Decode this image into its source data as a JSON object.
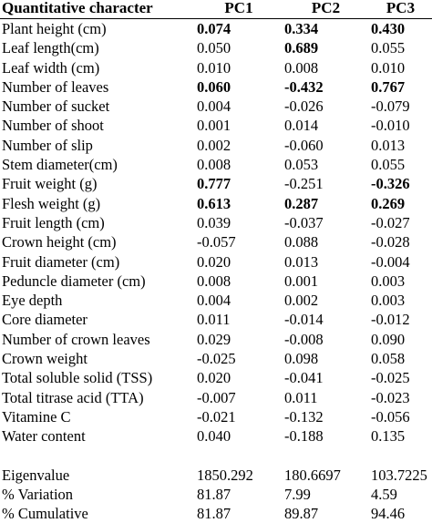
{
  "header": {
    "col0": "Quantitative character",
    "col1": "PC1",
    "col2": "PC2",
    "col3": "PC3"
  },
  "rows": [
    {
      "label": "Plant height (cm)",
      "pc1": "0.074",
      "pc2": "0.334",
      "pc3": "0.430",
      "bold": [
        true,
        true,
        true
      ]
    },
    {
      "label": "Leaf length(cm)",
      "pc1": "0.050",
      "pc2": "0.689",
      "pc3": "0.055",
      "bold": [
        false,
        true,
        false
      ]
    },
    {
      "label": "Leaf width (cm)",
      "pc1": "0.010",
      "pc2": "0.008",
      "pc3": "0.010",
      "bold": [
        false,
        false,
        false
      ]
    },
    {
      "label": "Number of leaves",
      "pc1": "0.060",
      "pc2": "-0.432",
      "pc3": "0.767",
      "bold": [
        true,
        true,
        true
      ]
    },
    {
      "label": "Number of sucket",
      "pc1": "0.004",
      "pc2": "-0.026",
      "pc3": "-0.079",
      "bold": [
        false,
        false,
        false
      ]
    },
    {
      "label": "Number of shoot",
      "pc1": "0.001",
      "pc2": "0.014",
      "pc3": "-0.010",
      "bold": [
        false,
        false,
        false
      ]
    },
    {
      "label": "Number of slip",
      "pc1": "0.002",
      "pc2": "-0.060",
      "pc3": "0.013",
      "bold": [
        false,
        false,
        false
      ]
    },
    {
      "label": "Stem diameter(cm)",
      "pc1": "0.008",
      "pc2": "0.053",
      "pc3": "0.055",
      "bold": [
        false,
        false,
        false
      ]
    },
    {
      "label": "Fruit weight (g)",
      "pc1": "0.777",
      "pc2": "-0.251",
      "pc3": "-0.326",
      "bold": [
        true,
        false,
        true
      ]
    },
    {
      "label": "Flesh weight (g)",
      "pc1": "0.613",
      "pc2": "0.287",
      "pc3": "0.269",
      "bold": [
        true,
        true,
        true
      ]
    },
    {
      "label": "Fruit length (cm)",
      "pc1": "0.039",
      "pc2": "-0.037",
      "pc3": "-0.027",
      "bold": [
        false,
        false,
        false
      ]
    },
    {
      "label": "Crown height (cm)",
      "pc1": "-0.057",
      "pc2": "0.088",
      "pc3": "-0.028",
      "bold": [
        false,
        false,
        false
      ]
    },
    {
      "label": "Fruit diameter (cm)",
      "pc1": "0.020",
      "pc2": "0.013",
      "pc3": "-0.004",
      "bold": [
        false,
        false,
        false
      ]
    },
    {
      "label": "Peduncle diameter (cm)",
      "pc1": "0.008",
      "pc2": "0.001",
      "pc3": "0.003",
      "bold": [
        false,
        false,
        false
      ]
    },
    {
      "label": "Eye depth",
      "pc1": "0.004",
      "pc2": "0.002",
      "pc3": "0.003",
      "bold": [
        false,
        false,
        false
      ]
    },
    {
      "label": "Core diameter",
      "pc1": "0.011",
      "pc2": "-0.014",
      "pc3": "-0.012",
      "bold": [
        false,
        false,
        false
      ]
    },
    {
      "label": "Number of crown leaves",
      "pc1": "0.029",
      "pc2": "-0.008",
      "pc3": "0.090",
      "bold": [
        false,
        false,
        false
      ]
    },
    {
      "label": "Crown weight",
      "pc1": "-0.025",
      "pc2": "0.098",
      "pc3": "0.058",
      "bold": [
        false,
        false,
        false
      ]
    },
    {
      "label": "Total soluble solid (TSS)",
      "pc1": "0.020",
      "pc2": "-0.041",
      "pc3": "-0.025",
      "bold": [
        false,
        false,
        false
      ]
    },
    {
      "label": "Total titrase acid (TTA)",
      "pc1": "-0.007",
      "pc2": "0.011",
      "pc3": "-0.023",
      "bold": [
        false,
        false,
        false
      ]
    },
    {
      "label": "Vitamine C",
      "pc1": "-0.021",
      "pc2": "-0.132",
      "pc3": "-0.056",
      "bold": [
        false,
        false,
        false
      ]
    },
    {
      "label": "Water content",
      "pc1": "0.040",
      "pc2": "-0.188",
      "pc3": "0.135",
      "bold": [
        false,
        false,
        false
      ]
    }
  ],
  "summary": [
    {
      "label": "Eigenvalue",
      "pc1": "1850.292",
      "pc2": "180.6697",
      "pc3": "103.7225"
    },
    {
      "label": "% Variation",
      "pc1": "81.87",
      "pc2": "7.99",
      "pc3": "4.59"
    },
    {
      "label": "% Cumulative",
      "pc1": "81.87",
      "pc2": "89.87",
      "pc3": "94.46"
    }
  ]
}
